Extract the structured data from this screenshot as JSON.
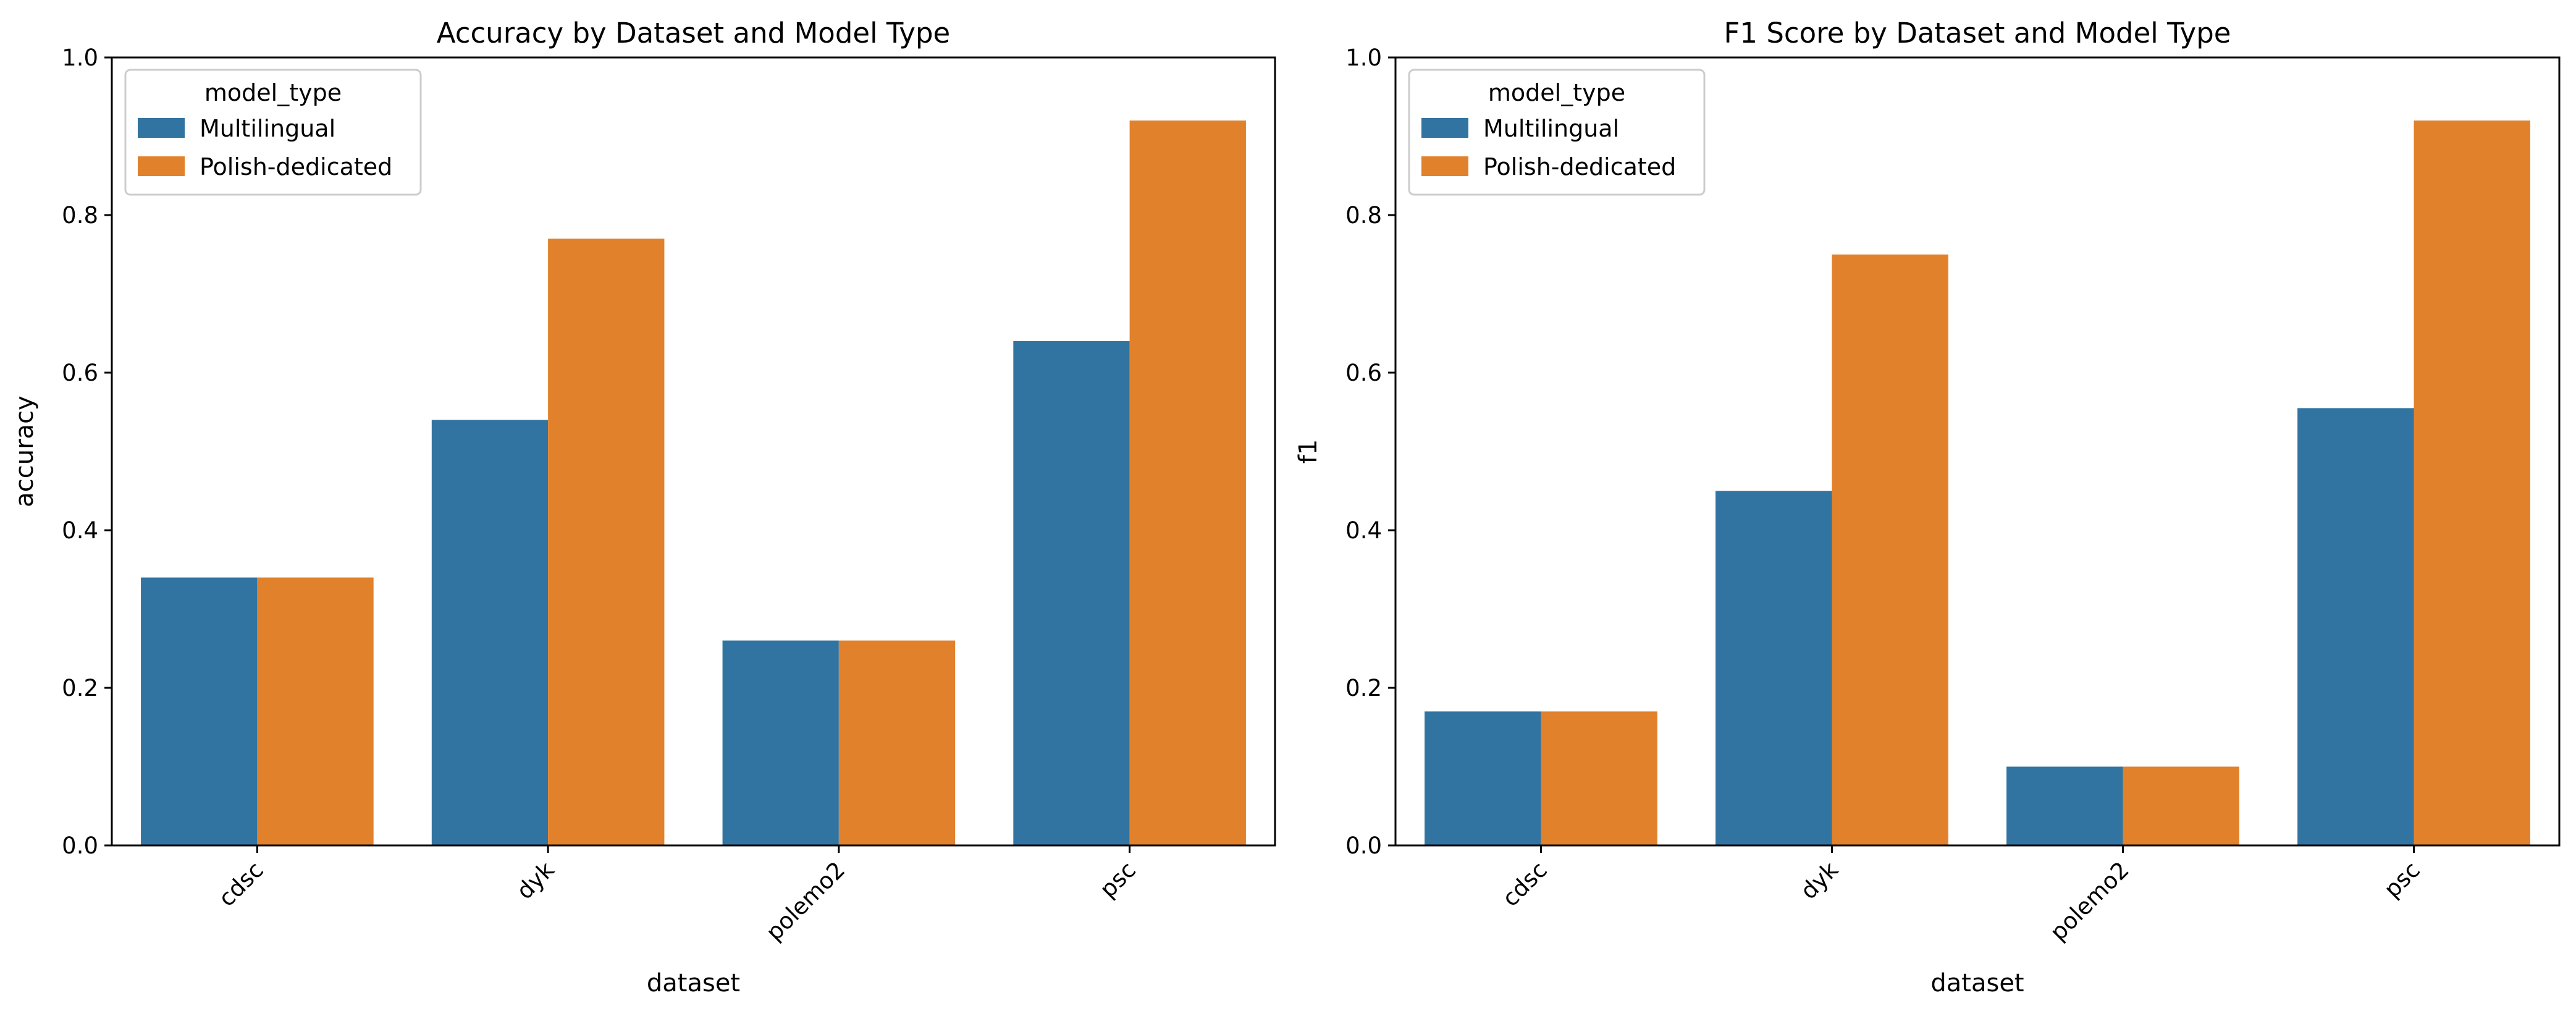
{
  "colors": {
    "multilingual": "#3274a1",
    "polish_dedicated": "#e1812c",
    "legend_border": "#cccccc",
    "axis": "#000000",
    "background": "#ffffff"
  },
  "chart_data": [
    {
      "type": "bar",
      "title": "Accuracy by Dataset and Model Type",
      "xlabel": "dataset",
      "ylabel": "accuracy",
      "categories": [
        "cdsc",
        "dyk",
        "polemo2",
        "psc"
      ],
      "series": [
        {
          "name": "Multilingual",
          "values": [
            0.34,
            0.54,
            0.26,
            0.64
          ]
        },
        {
          "name": "Polish-dedicated",
          "values": [
            0.34,
            0.77,
            0.26,
            0.92
          ]
        }
      ],
      "ylim": [
        0,
        1
      ],
      "yticks": [
        "0.0",
        "0.2",
        "0.4",
        "0.6",
        "0.8",
        "1.0"
      ],
      "grid": false,
      "legend": {
        "title": "model_type",
        "placement": "top-left"
      }
    },
    {
      "type": "bar",
      "title": "F1 Score by Dataset and Model Type",
      "xlabel": "dataset",
      "ylabel": "f1",
      "categories": [
        "cdsc",
        "dyk",
        "polemo2",
        "psc"
      ],
      "series": [
        {
          "name": "Multilingual",
          "values": [
            0.17,
            0.45,
            0.1,
            0.555
          ]
        },
        {
          "name": "Polish-dedicated",
          "values": [
            0.17,
            0.75,
            0.1,
            0.92
          ]
        }
      ],
      "ylim": [
        0,
        1
      ],
      "yticks": [
        "0.0",
        "0.2",
        "0.4",
        "0.6",
        "0.8",
        "1.0"
      ],
      "grid": false,
      "legend": {
        "title": "model_type",
        "placement": "top-left"
      }
    }
  ]
}
